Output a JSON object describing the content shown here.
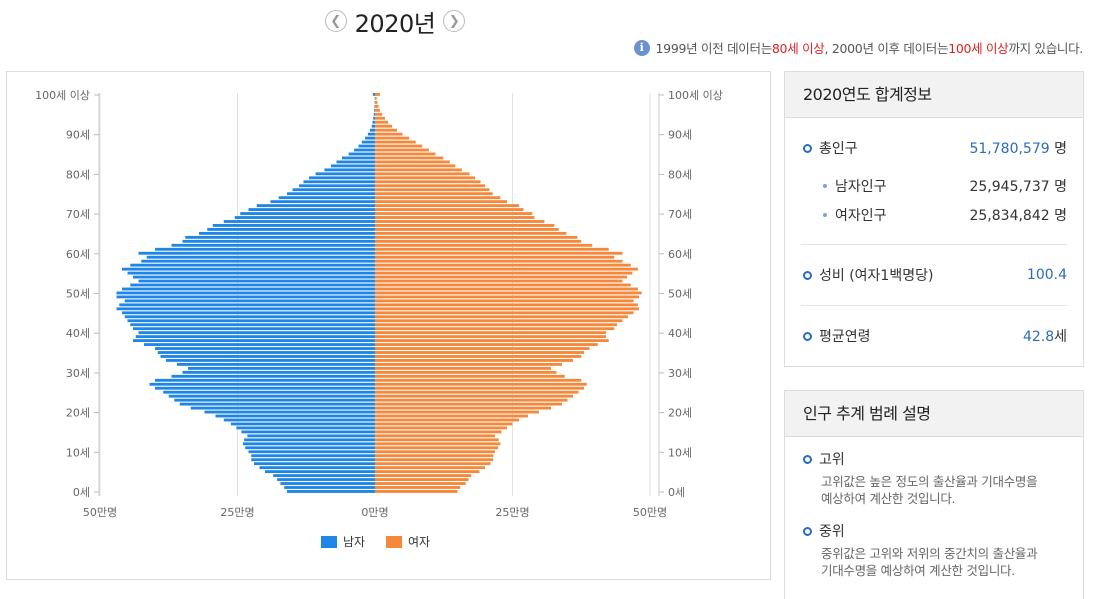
{
  "header": {
    "year_label": "2020년",
    "prev_icon": "chevron-left-icon",
    "next_icon": "chevron-right-icon"
  },
  "notice": {
    "icon": "info-icon",
    "part1": "1999년 이전 데이터는 ",
    "highlight1": "80세 이상",
    "part2": ", 2000년 이후 데이터는 ",
    "highlight2": "100세 이상",
    "part3": "까지 있습니다.",
    "highlight_color": "#e02020"
  },
  "summary": {
    "title": "2020연도 합계정보",
    "total_label": "총인구",
    "total_value": "51,780,579",
    "unit_person": "명",
    "male_label": "남자인구",
    "male_value": "25,945,737",
    "female_label": "여자인구",
    "female_value": "25,834,842",
    "ratio_label": "성비 (여자1백명당)",
    "ratio_value": "100.4",
    "age_label": "평균연령",
    "age_value": "42.8",
    "age_unit": "세"
  },
  "legend_desc": {
    "title": "인구 추계 범례 설명",
    "items": [
      {
        "name": "고위",
        "text1": "고위값은 높은 정도의 출산율과 기대수명을",
        "text2": "예상하여 계산한 것입니다."
      },
      {
        "name": "중위",
        "text1": "중위값은 고위와 저위의 중간치의 출산율과",
        "text2": "기대수명을 예상하여 계산한 것입니다."
      }
    ]
  },
  "chart_data": {
    "type": "bar",
    "orientation": "horizontal-pyramid",
    "year": "2020",
    "y_tick_labels": [
      "0세",
      "10세",
      "20세",
      "30세",
      "40세",
      "50세",
      "60세",
      "70세",
      "80세",
      "90세",
      "100세 이상"
    ],
    "x_tick_labels": [
      "50만명",
      "25만명",
      "0만명",
      "25만명",
      "50만명"
    ],
    "xlim": [
      0,
      500000
    ],
    "grid": true,
    "legend_position": "bottom",
    "colors": {
      "male": "#1f86e8",
      "female": "#f5883a"
    },
    "series": [
      {
        "name": "남자",
        "values": [
          160000,
          165000,
          172000,
          178000,
          185000,
          200000,
          210000,
          220000,
          225000,
          225000,
          230000,
          236000,
          240000,
          238000,
          232000,
          243000,
          252000,
          262000,
          275000,
          290000,
          310000,
          335000,
          355000,
          365000,
          375000,
          385000,
          400000,
          410000,
          400000,
          370000,
          350000,
          340000,
          360000,
          380000,
          390000,
          395000,
          400000,
          420000,
          440000,
          435000,
          430000,
          440000,
          445000,
          450000,
          455000,
          460000,
          470000,
          465000,
          455000,
          470000,
          470000,
          460000,
          445000,
          430000,
          440000,
          450000,
          460000,
          445000,
          425000,
          415000,
          430000,
          400000,
          370000,
          350000,
          345000,
          320000,
          305000,
          295000,
          275000,
          255000,
          245000,
          230000,
          215000,
          190000,
          175000,
          160000,
          150000,
          138000,
          130000,
          120000,
          108000,
          92000,
          80000,
          70000,
          60000,
          48000,
          38000,
          30000,
          24000,
          18000,
          13000,
          9000,
          6000,
          4500,
          3200,
          2200,
          1500,
          1000,
          700,
          450,
          4000
        ]
      },
      {
        "name": "여자",
        "values": [
          150000,
          155000,
          165000,
          170000,
          175000,
          190000,
          200000,
          210000,
          215000,
          215000,
          218000,
          224000,
          228000,
          225000,
          218000,
          230000,
          240000,
          250000,
          262000,
          278000,
          298000,
          320000,
          340000,
          350000,
          360000,
          370000,
          380000,
          385000,
          375000,
          345000,
          330000,
          320000,
          340000,
          360000,
          375000,
          380000,
          390000,
          405000,
          425000,
          420000,
          420000,
          435000,
          440000,
          450000,
          460000,
          470000,
          480000,
          478000,
          470000,
          480000,
          485000,
          478000,
          465000,
          450000,
          458000,
          468000,
          478000,
          465000,
          450000,
          435000,
          450000,
          425000,
          395000,
          375000,
          368000,
          348000,
          334000,
          326000,
          308000,
          290000,
          286000,
          270000,
          262000,
          240000,
          228000,
          214000,
          208000,
          200000,
          192000,
          182000,
          172000,
          158000,
          146000,
          136000,
          124000,
          110000,
          98000,
          86000,
          74000,
          62000,
          50000,
          40000,
          31000,
          24000,
          18000,
          13000,
          9000,
          6500,
          4500,
          3000,
          9000
        ]
      }
    ]
  }
}
